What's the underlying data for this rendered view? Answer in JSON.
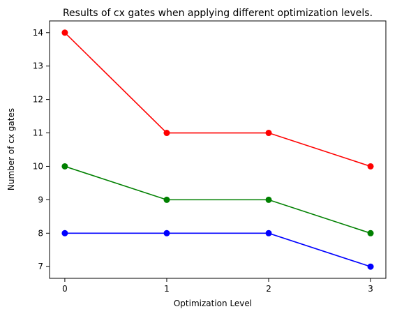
{
  "chart_data": {
    "type": "line",
    "title": "Results of cx gates when applying different optimization levels.",
    "xlabel": "Optimization Level",
    "ylabel": "Number of cx gates",
    "x": [
      0,
      1,
      2,
      3
    ],
    "x_ticks": [
      "0",
      "1",
      "2",
      "3"
    ],
    "y_ticks": [
      "7",
      "8",
      "9",
      "10",
      "11",
      "12",
      "13",
      "14"
    ],
    "xlim": [
      -0.15,
      3.15
    ],
    "ylim": [
      6.65,
      14.35
    ],
    "grid": false,
    "legend": "none",
    "series": [
      {
        "color": "#ff0000",
        "values": [
          14,
          11,
          11,
          10
        ]
      },
      {
        "color": "#008000",
        "values": [
          10,
          9,
          9,
          8
        ]
      },
      {
        "color": "#0000ff",
        "values": [
          8,
          8,
          8,
          7
        ]
      }
    ]
  }
}
